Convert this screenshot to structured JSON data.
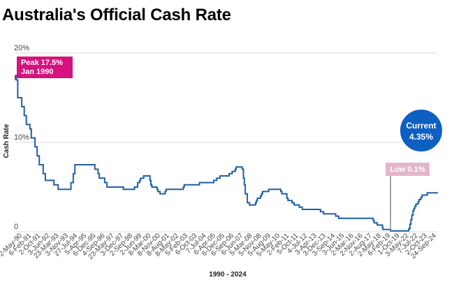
{
  "chart_data": {
    "type": "line",
    "title": "Australia's Official Cash Rate",
    "xlabel": "1990 - 2024",
    "ylabel": "Cash Rate",
    "ylim": [
      0,
      20
    ],
    "yticks": [
      {
        "value": 0,
        "label": "0"
      },
      {
        "value": 10,
        "label": "10%"
      },
      {
        "value": 20,
        "label": "20%"
      }
    ],
    "grid": true,
    "line_color": "#1f5fa8",
    "x_date_range": [
      "1990-01-23",
      "2024-09-24"
    ],
    "x_tick_labels": [
      "2-May-90",
      "6-Feb-91",
      "2-Oct-91",
      "3-Jun-92",
      "23-Mar-93",
      "3-Nov-93",
      "27-Jul-94",
      "5-Apr-95",
      "6-Dec-95",
      "4-Sep-96",
      "23-May-97",
      "3-Dec-97",
      "2-Sep-98",
      "2-Jun-99",
      "8-Mar-00",
      "8-Nov-00",
      "8-Aug-01",
      "8-May-02",
      "5-Feb-03",
      "6-Oct-03",
      "7-Jul-04",
      "6-Apr-05",
      "6-Dec-05",
      "6-Sep-06",
      "6-Jun-07",
      "5-Mar-08",
      "5-Nov-08",
      "5-Aug-09",
      "5-May-10",
      "2-Feb-11",
      "5-Oct-11",
      "4-Jul-12",
      "3-Apr-13",
      "3-Dec-13",
      "3-Sep-14",
      "3-Jun-15",
      "2-Mar-16",
      "2-Nov-16",
      "2-Aug-17",
      "2-May-18",
      "6-Feb-19",
      "1-Oct-19",
      "3-May-22",
      "7-Jul-22",
      "2-Oct-23",
      "24-Sep-24"
    ],
    "points": [
      {
        "x": "1990-01-23",
        "y": 17.5
      },
      {
        "x": "1990-02-15",
        "y": 17.0
      },
      {
        "x": "1990-04-04",
        "y": 15.0
      },
      {
        "x": "1990-08-02",
        "y": 14.0
      },
      {
        "x": "1990-10-15",
        "y": 13.0
      },
      {
        "x": "1990-12-18",
        "y": 12.0
      },
      {
        "x": "1991-04-04",
        "y": 11.5
      },
      {
        "x": "1991-05-16",
        "y": 10.5
      },
      {
        "x": "1991-09-03",
        "y": 9.5
      },
      {
        "x": "1991-11-06",
        "y": 8.5
      },
      {
        "x": "1992-01-08",
        "y": 7.5
      },
      {
        "x": "1992-05-06",
        "y": 6.5
      },
      {
        "x": "1992-07-08",
        "y": 5.75
      },
      {
        "x": "1993-03-23",
        "y": 5.25
      },
      {
        "x": "1993-07-30",
        "y": 4.75
      },
      {
        "x": "1994-08-17",
        "y": 5.5
      },
      {
        "x": "1994-10-24",
        "y": 6.5
      },
      {
        "x": "1994-12-14",
        "y": 7.5
      },
      {
        "x": "1996-07-31",
        "y": 7.0
      },
      {
        "x": "1996-11-06",
        "y": 6.5
      },
      {
        "x": "1996-12-11",
        "y": 6.0
      },
      {
        "x": "1997-05-23",
        "y": 5.5
      },
      {
        "x": "1997-07-30",
        "y": 5.0
      },
      {
        "x": "1998-12-02",
        "y": 4.75
      },
      {
        "x": "1999-11-03",
        "y": 5.0
      },
      {
        "x": "2000-02-02",
        "y": 5.5
      },
      {
        "x": "2000-04-05",
        "y": 5.75
      },
      {
        "x": "2000-05-03",
        "y": 6.0
      },
      {
        "x": "2000-08-02",
        "y": 6.25
      },
      {
        "x": "2001-02-07",
        "y": 5.75
      },
      {
        "x": "2001-03-07",
        "y": 5.25
      },
      {
        "x": "2001-04-04",
        "y": 5.0
      },
      {
        "x": "2001-09-05",
        "y": 4.75
      },
      {
        "x": "2001-10-03",
        "y": 4.5
      },
      {
        "x": "2001-12-05",
        "y": 4.25
      },
      {
        "x": "2002-05-08",
        "y": 4.5
      },
      {
        "x": "2002-06-05",
        "y": 4.75
      },
      {
        "x": "2003-11-05",
        "y": 5.0
      },
      {
        "x": "2003-12-03",
        "y": 5.25
      },
      {
        "x": "2005-03-02",
        "y": 5.5
      },
      {
        "x": "2006-05-03",
        "y": 5.75
      },
      {
        "x": "2006-08-02",
        "y": 6.0
      },
      {
        "x": "2006-11-08",
        "y": 6.25
      },
      {
        "x": "2007-08-08",
        "y": 6.5
      },
      {
        "x": "2007-11-07",
        "y": 6.75
      },
      {
        "x": "2008-02-06",
        "y": 7.0
      },
      {
        "x": "2008-03-05",
        "y": 7.25
      },
      {
        "x": "2008-09-03",
        "y": 7.0
      },
      {
        "x": "2008-10-08",
        "y": 6.0
      },
      {
        "x": "2008-11-05",
        "y": 5.25
      },
      {
        "x": "2008-12-03",
        "y": 4.25
      },
      {
        "x": "2009-02-04",
        "y": 3.25
      },
      {
        "x": "2009-04-08",
        "y": 3.0
      },
      {
        "x": "2009-10-07",
        "y": 3.25
      },
      {
        "x": "2009-11-04",
        "y": 3.5
      },
      {
        "x": "2009-12-02",
        "y": 3.75
      },
      {
        "x": "2010-03-03",
        "y": 4.0
      },
      {
        "x": "2010-04-07",
        "y": 4.25
      },
      {
        "x": "2010-05-05",
        "y": 4.5
      },
      {
        "x": "2010-11-03",
        "y": 4.75
      },
      {
        "x": "2011-11-02",
        "y": 4.5
      },
      {
        "x": "2011-12-07",
        "y": 4.25
      },
      {
        "x": "2012-05-02",
        "y": 3.75
      },
      {
        "x": "2012-06-06",
        "y": 3.5
      },
      {
        "x": "2012-10-03",
        "y": 3.25
      },
      {
        "x": "2012-12-05",
        "y": 3.0
      },
      {
        "x": "2013-05-08",
        "y": 2.75
      },
      {
        "x": "2013-08-07",
        "y": 2.5
      },
      {
        "x": "2015-02-04",
        "y": 2.25
      },
      {
        "x": "2015-05-06",
        "y": 2.0
      },
      {
        "x": "2016-05-04",
        "y": 1.75
      },
      {
        "x": "2016-08-03",
        "y": 1.5
      },
      {
        "x": "2019-06-05",
        "y": 1.25
      },
      {
        "x": "2019-07-03",
        "y": 1.0
      },
      {
        "x": "2019-10-02",
        "y": 0.75
      },
      {
        "x": "2020-03-04",
        "y": 0.5
      },
      {
        "x": "2020-03-20",
        "y": 0.25
      },
      {
        "x": "2020-11-04",
        "y": 0.1
      },
      {
        "x": "2022-05-04",
        "y": 0.35
      },
      {
        "x": "2022-06-08",
        "y": 0.85
      },
      {
        "x": "2022-07-06",
        "y": 1.35
      },
      {
        "x": "2022-08-03",
        "y": 1.85
      },
      {
        "x": "2022-09-07",
        "y": 2.35
      },
      {
        "x": "2022-10-05",
        "y": 2.6
      },
      {
        "x": "2022-11-02",
        "y": 2.85
      },
      {
        "x": "2022-12-07",
        "y": 3.1
      },
      {
        "x": "2023-02-08",
        "y": 3.35
      },
      {
        "x": "2023-03-08",
        "y": 3.6
      },
      {
        "x": "2023-05-03",
        "y": 3.85
      },
      {
        "x": "2023-06-07",
        "y": 4.1
      },
      {
        "x": "2023-11-08",
        "y": 4.35
      },
      {
        "x": "2024-09-24",
        "y": 4.35
      }
    ],
    "annotations": {
      "peak": {
        "line1": "Peak 17.5%",
        "line2": "Jan 1990",
        "x": "1990-01-23",
        "y": 17.5,
        "color": "#d6127e"
      },
      "low": {
        "label": "Low 0.1%",
        "x": "2020-11-04",
        "y": 0.1,
        "color": "#e3b5cc"
      },
      "current": {
        "line1": "Current",
        "line2": "4.35%",
        "x": "2024-09-24",
        "y": 4.35,
        "color": "#0e5fc2"
      }
    }
  }
}
